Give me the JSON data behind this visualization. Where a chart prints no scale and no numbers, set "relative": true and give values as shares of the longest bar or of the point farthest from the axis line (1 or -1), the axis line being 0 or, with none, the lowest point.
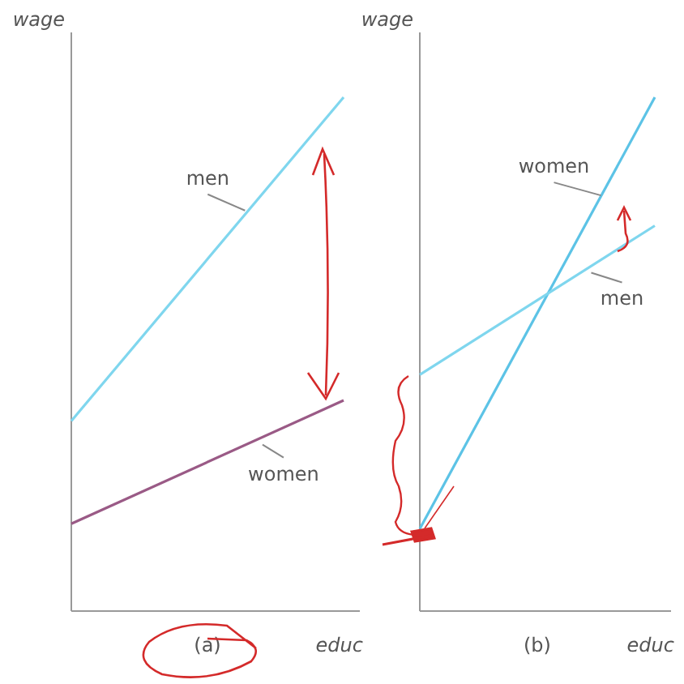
{
  "chart_data": [
    {
      "type": "line",
      "relative": true,
      "xlabel": "educ",
      "ylabel": "wage",
      "annotations": [
        "(a)"
      ],
      "categories": [
        null,
        null
      ],
      "series": [
        {
          "name": "men",
          "color": "#7fd6ee",
          "values": [
            0.37,
            1
          ]
        },
        {
          "name": "women",
          "color": "#9a5a86",
          "values": [
            0.17,
            0.41
          ]
        }
      ]
    },
    {
      "type": "line",
      "relative": true,
      "xlabel": "educ",
      "ylabel": "wage",
      "annotations": [
        "(b)"
      ],
      "categories": [
        null,
        null
      ],
      "series": [
        {
          "name": "women",
          "color": "#5cc3e6",
          "values": [
            0.16,
            1
          ]
        },
        {
          "name": "men",
          "color": "#7fd6ee",
          "values": [
            0.46,
            0.75
          ]
        }
      ]
    }
  ]
}
